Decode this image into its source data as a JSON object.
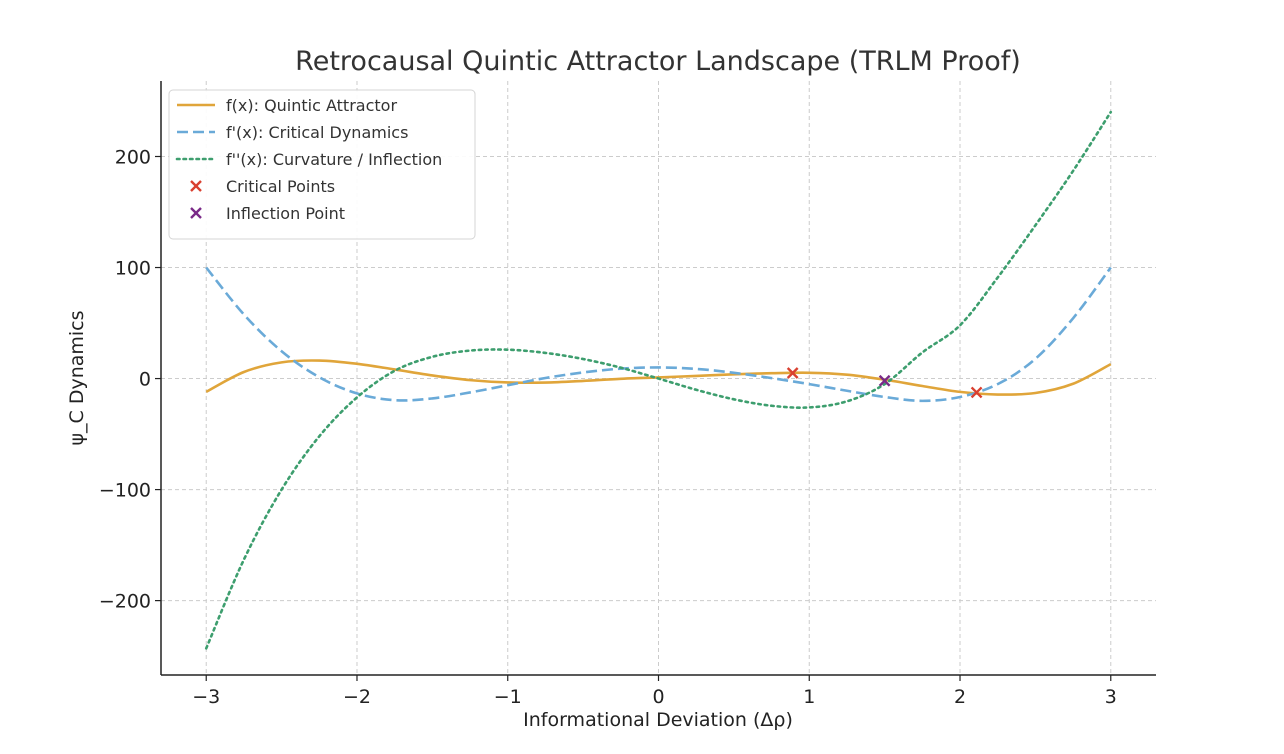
{
  "chart_data": {
    "type": "line",
    "title": "Retrocausal Quintic Attractor Landscape (TRLM Proof)",
    "xlabel": "Informational Deviation (Δρ)",
    "ylabel": "ψ_C Dynamics",
    "xlim": [
      -3.3,
      3.3
    ],
    "ylim": [
      -267,
      268
    ],
    "x_ticks": [
      -3,
      -2,
      -1,
      0,
      1,
      2,
      3
    ],
    "x_tick_labels": [
      "−3",
      "−2",
      "−1",
      "0",
      "1",
      "2",
      "3"
    ],
    "y_ticks": [
      -200,
      -100,
      0,
      100,
      200
    ],
    "y_tick_labels": [
      "−200",
      "−100",
      "0",
      "100",
      "200"
    ],
    "grid": true,
    "legend_position": "top-left",
    "series": [
      {
        "name": "f(x): Quintic Attractor",
        "style": "solid",
        "color": "#e0a53a",
        "x": [
          -3,
          -2.75,
          -2.5,
          -2.25,
          -2,
          -1.75,
          -1.5,
          -1.25,
          -1,
          -0.75,
          -0.5,
          -0.25,
          0,
          0.25,
          0.5,
          0.75,
          1,
          1.25,
          1.5,
          1.75,
          2,
          2.25,
          2.5,
          2.75,
          3
        ],
        "y": [
          -12,
          5.9,
          14.6,
          16.2,
          13.3,
          8.2,
          2.8,
          -1.4,
          -3.5,
          -3.6,
          -2.1,
          -0.2,
          1,
          2.4,
          3.8,
          4.8,
          5.2,
          3.5,
          -1,
          -6.7,
          -12,
          -14.4,
          -13,
          -4.7,
          13
        ]
      },
      {
        "name": "f'(x): Critical Dynamics",
        "style": "dashed",
        "color": "#6aaad8",
        "x": [
          -3,
          -2.75,
          -2.5,
          -2.25,
          -2,
          -1.75,
          -1.5,
          -1.25,
          -1,
          -0.75,
          -0.5,
          -0.25,
          0,
          0.25,
          0.5,
          0.75,
          1,
          1.25,
          1.5,
          1.75,
          2,
          2.25,
          2.5,
          2.75,
          3
        ],
        "y": [
          100,
          57.7,
          24.6,
          1.2,
          -13.4,
          -19.5,
          -17.9,
          -12.5,
          -6,
          0.5,
          5.5,
          8.9,
          10,
          8.7,
          5.2,
          0.4,
          -5,
          -11,
          -16.6,
          -20.1,
          -16.6,
          -5,
          17.8,
          54.3,
          100
        ]
      },
      {
        "name": "f''(x): Curvature / Inflection",
        "style": "dotted",
        "color": "#3d9e6e",
        "x": [
          -3,
          -2.75,
          -2.5,
          -2.25,
          -2,
          -1.75,
          -1.5,
          -1.25,
          -1,
          -0.75,
          -0.5,
          -0.25,
          0,
          0.25,
          0.5,
          0.75,
          1,
          1.25,
          1.5,
          1.75,
          2,
          2.25,
          2.5,
          2.75,
          3
        ],
        "y": [
          -243,
          -163,
          -100,
          -52,
          -17,
          7,
          19.6,
          25.2,
          26,
          23.1,
          17.6,
          9.8,
          0,
          -10.1,
          -18.7,
          -24.5,
          -26,
          -20.5,
          -5,
          23.5,
          48,
          91,
          138,
          187,
          240
        ]
      }
    ],
    "markers": [
      {
        "name": "Critical Points",
        "symbol": "x",
        "color": "#d94030",
        "points": [
          {
            "x": 0.89,
            "y": 5
          },
          {
            "x": 2.11,
            "y": -12.5
          }
        ]
      },
      {
        "name": "Inflection Point",
        "symbol": "x",
        "color": "#7a2a88",
        "points": [
          {
            "x": 1.5,
            "y": -2
          }
        ]
      }
    ]
  }
}
